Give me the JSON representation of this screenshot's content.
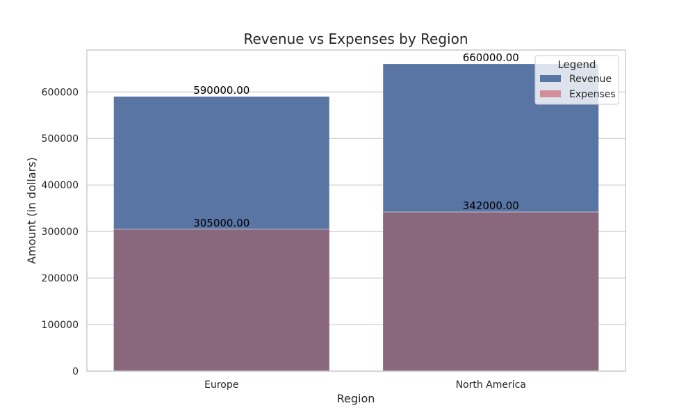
{
  "chart_data": {
    "type": "bar",
    "title": "Revenue vs Expenses by Region",
    "xlabel": "Region",
    "ylabel": "Amount (in dollars)",
    "categories": [
      "Europe",
      "North America"
    ],
    "series": [
      {
        "name": "Revenue",
        "values": [
          590000,
          660000
        ],
        "labels": [
          "590000.00",
          "660000.00"
        ],
        "color": "#5875a4"
      },
      {
        "name": "Expenses",
        "values": [
          305000,
          342000
        ],
        "labels": [
          "305000.00",
          "342000.00"
        ],
        "color": "#d28f99"
      }
    ],
    "overlap_color": "#89687d",
    "ylim": [
      0,
      690000
    ],
    "yticks": [
      0,
      100000,
      200000,
      300000,
      400000,
      500000,
      600000
    ],
    "ytick_labels": [
      "0",
      "100000",
      "200000",
      "300000",
      "400000",
      "500000",
      "600000"
    ],
    "grid": true,
    "legend": {
      "title": "Legend",
      "placement": "top-right"
    }
  }
}
